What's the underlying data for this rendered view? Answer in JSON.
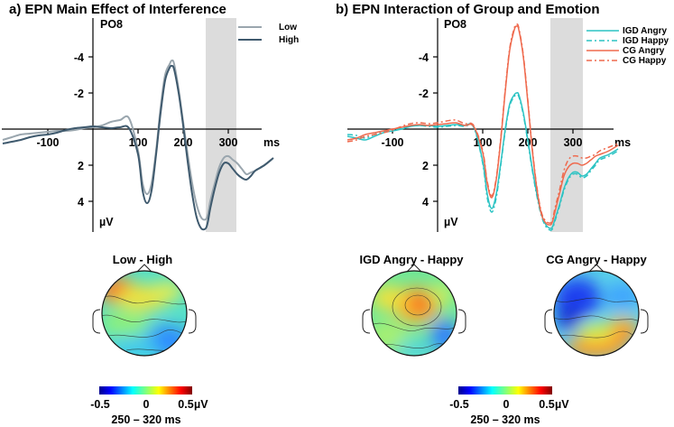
{
  "colors": {
    "low": "#9aa6ae",
    "high": "#3f5a6e",
    "igd": "#2cc3c3",
    "cg": "#ef6a4e",
    "window": "#dcdcdc"
  },
  "panel_a": {
    "title": "a) EPN Main Effect of Interference",
    "channel": "PO8",
    "ms_label": "ms",
    "uv_label": "µV",
    "legend": [
      "Low",
      "High"
    ],
    "topo_title": "Low - High",
    "colorbar_ticks": [
      "-0.5",
      "0",
      "0.5"
    ],
    "colorbar_unit": "µV",
    "window_label": "250 – 320 ms"
  },
  "panel_b": {
    "title": "b) EPN Interaction of Group and Emotion",
    "channel": "PO8",
    "ms_label": "ms",
    "uv_label": "µV",
    "legend": [
      "IGD Angry",
      "IGD Happy",
      "CG Angry",
      "CG Happy"
    ],
    "topo_titles": [
      "IGD Angry - Happy",
      "CG Angry - Happy"
    ],
    "colorbar_ticks": [
      "-0.5",
      "0",
      "0.5"
    ],
    "colorbar_unit": "µV",
    "window_label": "250 – 320 ms"
  },
  "chart_data": [
    {
      "type": "line",
      "title": "a) EPN Main Effect of Interference",
      "xlabel": "ms",
      "ylabel": "µV",
      "xlim": [
        -200,
        400
      ],
      "ylim": [
        -6,
        6
      ],
      "y_inverted": true,
      "x_ticks": [
        -100,
        100,
        200,
        300
      ],
      "y_ticks": [
        -4,
        -2,
        2,
        4
      ],
      "highlight_window": [
        250,
        320
      ],
      "x": [
        -200,
        -180,
        -160,
        -140,
        -120,
        -100,
        -80,
        -60,
        -40,
        -20,
        0,
        20,
        40,
        60,
        80,
        100,
        110,
        120,
        130,
        140,
        150,
        160,
        170,
        175,
        180,
        190,
        200,
        210,
        220,
        230,
        240,
        250,
        255,
        260,
        270,
        280,
        290,
        300,
        310,
        320,
        330,
        340,
        350,
        360,
        380,
        400
      ],
      "series": [
        {
          "name": "Low",
          "style": "solid",
          "values": [
            0.6,
            0.45,
            0.3,
            0.25,
            0.2,
            0.15,
            0.1,
            0.1,
            0.05,
            -0.05,
            -0.1,
            -0.2,
            -0.4,
            -0.5,
            -0.6,
            1.2,
            3.0,
            3.6,
            3.0,
            1.2,
            -1.2,
            -3.0,
            -3.6,
            -3.8,
            -3.6,
            -2.2,
            -0.4,
            1.4,
            3.0,
            4.2,
            4.9,
            5.0,
            4.7,
            4.0,
            3.0,
            2.1,
            1.6,
            1.5,
            1.7,
            1.9,
            2.2,
            2.5,
            2.4,
            2.3,
            2.0,
            1.6
          ]
        },
        {
          "name": "High",
          "style": "solid",
          "values": [
            0.8,
            0.7,
            0.6,
            0.45,
            0.35,
            0.3,
            0.2,
            0.05,
            -0.05,
            -0.1,
            -0.15,
            -0.1,
            -0.05,
            -0.1,
            -0.05,
            1.4,
            3.4,
            4.1,
            3.4,
            1.4,
            -0.9,
            -2.7,
            -3.4,
            -3.5,
            -3.3,
            -2.0,
            -0.2,
            1.8,
            3.6,
            4.9,
            5.5,
            5.5,
            5.1,
            4.4,
            3.3,
            2.4,
            1.9,
            1.9,
            2.2,
            2.5,
            2.7,
            2.8,
            2.6,
            2.3,
            2.0,
            1.6
          ]
        }
      ]
    },
    {
      "type": "line",
      "title": "b) EPN Interaction of Group and Emotion",
      "xlabel": "ms",
      "ylabel": "µV",
      "xlim": [
        -200,
        400
      ],
      "ylim": [
        -6,
        6
      ],
      "y_inverted": true,
      "x_ticks": [
        -100,
        100,
        200,
        300
      ],
      "y_ticks": [
        -4,
        -2,
        2,
        4
      ],
      "highlight_window": [
        250,
        320
      ],
      "x": [
        -200,
        -180,
        -160,
        -140,
        -120,
        -100,
        -80,
        -60,
        -40,
        -20,
        0,
        20,
        40,
        60,
        80,
        100,
        110,
        120,
        130,
        140,
        150,
        160,
        170,
        175,
        180,
        190,
        200,
        210,
        220,
        230,
        240,
        250,
        255,
        260,
        270,
        280,
        290,
        300,
        310,
        320,
        330,
        340,
        350,
        360,
        380,
        400
      ],
      "series": [
        {
          "name": "IGD Angry",
          "style": "solid",
          "group": "igd",
          "values": [
            0.4,
            0.5,
            0.6,
            0.4,
            0.2,
            0.1,
            0.0,
            -0.15,
            -0.2,
            -0.2,
            -0.15,
            -0.2,
            -0.25,
            -0.2,
            -0.15,
            1.8,
            3.6,
            4.4,
            3.6,
            1.9,
            0.0,
            -1.4,
            -1.9,
            -2.0,
            -1.9,
            -0.9,
            0.6,
            2.2,
            3.6,
            4.7,
            5.3,
            5.5,
            5.4,
            5.0,
            4.2,
            3.3,
            2.7,
            2.4,
            2.4,
            2.6,
            2.5,
            2.2,
            1.9,
            1.6,
            1.4,
            1.1
          ]
        },
        {
          "name": "IGD Happy",
          "style": "dashed",
          "group": "igd",
          "values": [
            0.3,
            0.35,
            0.5,
            0.3,
            0.15,
            0.05,
            -0.05,
            -0.2,
            -0.2,
            -0.15,
            -0.1,
            -0.15,
            -0.2,
            -0.15,
            -0.1,
            1.9,
            3.8,
            4.6,
            3.8,
            2.0,
            0.1,
            -1.3,
            -1.8,
            -1.9,
            -1.8,
            -0.8,
            0.7,
            2.3,
            3.7,
            4.8,
            5.4,
            5.6,
            5.5,
            5.1,
            4.3,
            3.4,
            2.8,
            2.5,
            2.5,
            2.7,
            2.6,
            2.3,
            2.0,
            1.7,
            1.5,
            1.2
          ]
        },
        {
          "name": "CG Angry",
          "style": "solid",
          "group": "cg",
          "values": [
            0.6,
            0.5,
            0.3,
            0.2,
            0.1,
            0.0,
            -0.1,
            -0.2,
            -0.25,
            -0.2,
            -0.25,
            -0.3,
            -0.35,
            -0.2,
            -0.15,
            1.3,
            3.0,
            3.8,
            2.8,
            0.6,
            -2.1,
            -4.4,
            -5.5,
            -5.7,
            -5.5,
            -4.0,
            -1.5,
            1.2,
            3.3,
            4.7,
            5.2,
            5.3,
            5.1,
            4.6,
            3.6,
            2.6,
            2.1,
            1.9,
            1.9,
            2.0,
            1.9,
            1.7,
            1.5,
            1.4,
            1.2,
            0.9
          ]
        },
        {
          "name": "CG Happy",
          "style": "dashed",
          "group": "cg",
          "values": [
            0.7,
            0.6,
            0.4,
            0.3,
            0.2,
            0.05,
            -0.15,
            -0.3,
            -0.35,
            -0.3,
            -0.35,
            -0.45,
            -0.5,
            -0.3,
            -0.2,
            1.2,
            2.9,
            3.7,
            2.7,
            0.5,
            -2.2,
            -4.5,
            -5.6,
            -5.8,
            -5.6,
            -4.1,
            -1.6,
            1.1,
            3.2,
            4.6,
            5.1,
            5.2,
            5.0,
            4.4,
            3.4,
            2.3,
            1.7,
            1.5,
            1.5,
            1.6,
            1.6,
            1.5,
            1.4,
            1.2,
            1.0,
            0.8
          ]
        }
      ]
    }
  ]
}
